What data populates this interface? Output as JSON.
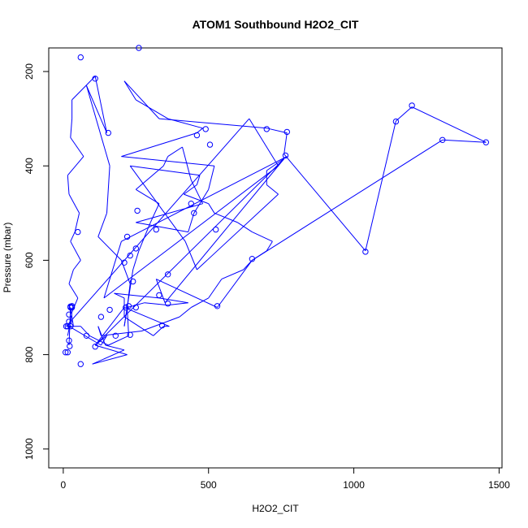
{
  "chart_data": {
    "type": "line",
    "title": "ATOM1 Southbound H2O2_CIT",
    "xlabel": "H2O2_CIT",
    "ylabel": "Pressure (mbar)",
    "xlim": [
      -50,
      1510
    ],
    "ylim": [
      1040,
      150
    ],
    "y_reversed": true,
    "x_ticks": [
      0,
      500,
      1000,
      1500
    ],
    "y_ticks": [
      200,
      400,
      600,
      800,
      1000
    ],
    "grid": false,
    "legend": "none",
    "colors": {
      "series": "#0000ff",
      "axes": "#000000",
      "background": "#ffffff"
    },
    "series": [
      {
        "x": [
          15,
          25,
          30,
          50,
          20,
          35,
          60,
          25,
          40,
          55,
          20,
          15,
          70,
          25,
          30,
          30,
          110,
          150,
          80,
          160,
          150,
          120,
          200,
          230,
          220,
          210,
          240,
          260,
          300,
          330,
          250,
          345,
          360,
          410,
          440,
          480,
          250,
          430,
          450,
          500,
          520,
          200,
          460,
          480,
          360,
          250,
          210,
          330,
          700,
          770,
          760,
          1040,
          1145,
          1200,
          1455,
          1305,
          650,
          530,
          320,
          350,
          760,
          110,
          150,
          130,
          20,
          60,
          90,
          155,
          225,
          220,
          280,
          360,
          430,
          330,
          175,
          210,
          210,
          310,
          345,
          365,
          210,
          110,
          220,
          100,
          210,
          145,
          120,
          130,
          270,
          400,
          440,
          500,
          545,
          620,
          650,
          700,
          720,
          650,
          600,
          520,
          500,
          415,
          460,
          470,
          230,
          420,
          460,
          740,
          700,
          700,
          770,
          200,
          140,
          740,
          640,
          10,
          20,
          35,
          25,
          20
        ],
        "y": [
          760,
          730,
          710,
          680,
          650,
          620,
          600,
          560,
          540,
          500,
          460,
          420,
          380,
          340,
          300,
          260,
          210,
          330,
          230,
          400,
          500,
          550,
          600,
          650,
          700,
          740,
          620,
          580,
          520,
          480,
          450,
          400,
          380,
          360,
          430,
          480,
          520,
          540,
          500,
          450,
          400,
          380,
          330,
          320,
          300,
          260,
          220,
          300,
          320,
          330,
          375,
          580,
          305,
          275,
          350,
          345,
          600,
          700,
          640,
          690,
          385,
          780,
          760,
          780,
          740,
          740,
          760,
          780,
          760,
          700,
          690,
          695,
          690,
          680,
          670,
          680,
          720,
          760,
          740,
          740,
          700,
          780,
          800,
          820,
          790,
          780,
          740,
          760,
          750,
          720,
          700,
          680,
          640,
          620,
          600,
          580,
          560,
          540,
          520,
          500,
          480,
          460,
          440,
          420,
          400,
          560,
          620,
          460,
          440,
          410,
          380,
          560,
          680,
          400,
          300,
          740,
          740,
          740,
          700,
          780
        ]
      }
    ],
    "points": {
      "x": [
        15,
        25,
        30,
        50,
        60,
        110,
        155,
        260,
        230,
        250,
        220,
        210,
        240,
        255,
        320,
        360,
        440,
        450,
        460,
        490,
        505,
        525,
        700,
        770,
        765,
        1040,
        1145,
        1200,
        1305,
        1455,
        650,
        530,
        340,
        360,
        330,
        250,
        215,
        180,
        160,
        130,
        110,
        80,
        60,
        15,
        20,
        20,
        25,
        20,
        8,
        10,
        25,
        30,
        22,
        230,
        225
      ],
      "y": [
        740,
        740,
        700,
        540,
        170,
        215,
        330,
        150,
        590,
        575,
        550,
        605,
        645,
        495,
        535,
        630,
        480,
        500,
        335,
        322,
        355,
        535,
        322,
        328,
        378,
        582,
        306,
        272,
        345,
        350,
        597,
        697,
        738,
        692,
        674,
        700,
        700,
        760,
        705,
        720,
        783,
        760,
        820,
        795,
        770,
        730,
        700,
        715,
        795,
        740,
        698,
        697,
        782,
        758,
        697
      ]
    }
  }
}
